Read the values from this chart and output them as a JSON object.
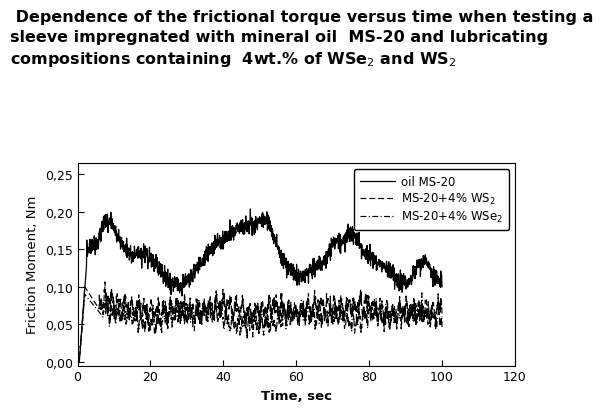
{
  "title_line1": " Dependence of the frictional torque versus time when testing a",
  "title_line2": "sleeve impregnated with mineral oil  MS-20 and lubricating",
  "title_line3": "compositions containing  4wt.% of WSe$_2$ and WS$_2$",
  "xlabel": "Time, sec",
  "ylabel": "Friction Moment, Nm",
  "xlim": [
    0,
    120
  ],
  "ylim": [
    -0.005,
    0.265
  ],
  "yticks": [
    0.0,
    0.05,
    0.1,
    0.15,
    0.2,
    0.25
  ],
  "ytick_labels": [
    "0,00",
    "0,05",
    "0,10",
    "0,15",
    "0,20",
    "0,25"
  ],
  "xticks": [
    0,
    20,
    40,
    60,
    80,
    100,
    120
  ],
  "legend_label_1": "oil MS-20",
  "legend_label_2": "MS-20+4% WS$_2$",
  "legend_label_3": "MS-20+4% WSe$_2$",
  "bg_color": "#ffffff",
  "title_fontsize": 11.5,
  "axis_label_fontsize": 9.5,
  "tick_fontsize": 9,
  "legend_fontsize": 8.5
}
